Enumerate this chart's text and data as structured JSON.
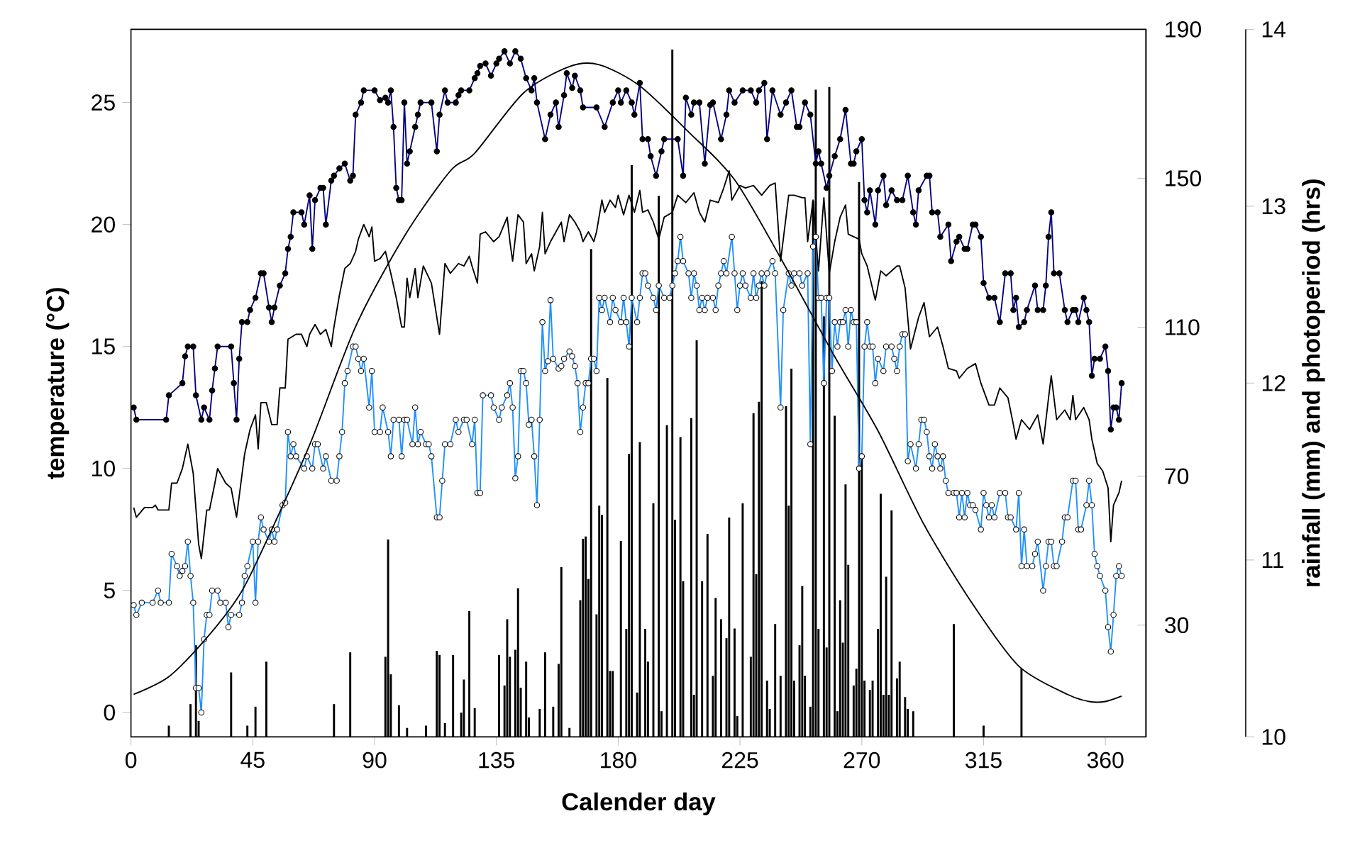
{
  "chart_data": {
    "type": "line",
    "xlabel": "Calender day",
    "ylabel": "temperature (°C)",
    "y2label": "rainfall (mm) and photoperiod (hrs)",
    "xlim": [
      0,
      375
    ],
    "xticks": [
      0,
      45,
      90,
      135,
      180,
      225,
      270,
      315,
      360
    ],
    "ylim": [
      -1,
      28
    ],
    "yticks": [
      0,
      5,
      10,
      15,
      20,
      25
    ],
    "y2lim": [
      0,
      190
    ],
    "y2ticks": [
      30,
      70,
      110,
      150,
      190
    ],
    "y3lim": [
      10,
      14
    ],
    "y3ticks": [
      10,
      11,
      12,
      13,
      14
    ],
    "series": [
      {
        "color": "#000080",
        "marker": "circle",
        "x": [
          1,
          2,
          13,
          14,
          19,
          20,
          21,
          23,
          24,
          26,
          27,
          29,
          30,
          31,
          32,
          37,
          38,
          39,
          40,
          41,
          43,
          44,
          46,
          48,
          49,
          51,
          52,
          53,
          55,
          57,
          58,
          59,
          60,
          63,
          64,
          66,
          67,
          68,
          70,
          71,
          72,
          74,
          75,
          77,
          79,
          81,
          82,
          83,
          85,
          86,
          90,
          92,
          94,
          95,
          96,
          97,
          98,
          99,
          100,
          101,
          102,
          103,
          105,
          106,
          107,
          111,
          113,
          114,
          116,
          117,
          120,
          121,
          122,
          125,
          127,
          128,
          129,
          131,
          133,
          135,
          136,
          138,
          140,
          142,
          144,
          146,
          148,
          149,
          150,
          153,
          155,
          157,
          158,
          160,
          161,
          163,
          164,
          166,
          167,
          172,
          175,
          178,
          180,
          181,
          183,
          185,
          186,
          188,
          189,
          191,
          192,
          194,
          196,
          197,
          202,
          204,
          205,
          207,
          208,
          210,
          212,
          214,
          215,
          218,
          220,
          221,
          223,
          226,
          229,
          231,
          232,
          234,
          235,
          237,
          240,
          242,
          244,
          246,
          247,
          249,
          251,
          253,
          254,
          255,
          257,
          258,
          260,
          262,
          264,
          266,
          267,
          268,
          270,
          271,
          272,
          273,
          275,
          276,
          278,
          279,
          281,
          283,
          285,
          287,
          289,
          290,
          291,
          294,
          295,
          296,
          298,
          299,
          302,
          303,
          305,
          306,
          308,
          309,
          311,
          312,
          314,
          315,
          317,
          319,
          321,
          323,
          325,
          326,
          327,
          328,
          330,
          331,
          334,
          335,
          337,
          338,
          339,
          340,
          341,
          343,
          345,
          346,
          348,
          349,
          350,
          352,
          353,
          354,
          355,
          356,
          358,
          360,
          361,
          362,
          363,
          364,
          365,
          366
        ],
        "values": [
          12.5,
          12,
          12,
          13,
          13.5,
          14.6,
          15,
          15,
          13,
          12,
          12.5,
          12,
          13.2,
          14.1,
          15,
          15,
          13.5,
          12,
          14.5,
          16,
          16,
          16.5,
          17,
          18,
          18,
          16.6,
          16,
          16.6,
          17.5,
          18,
          19,
          19.5,
          20.5,
          20.5,
          20,
          21.2,
          19,
          21,
          21.5,
          21.5,
          20,
          21.8,
          22,
          22.3,
          22.5,
          21.8,
          22,
          24.5,
          25,
          25.5,
          25.5,
          25.1,
          25.2,
          25,
          25.5,
          24,
          21.5,
          21,
          21,
          25,
          22.5,
          23,
          24,
          24.5,
          25,
          25,
          23,
          24.5,
          25.5,
          25,
          25,
          25.3,
          25.5,
          25.5,
          26,
          26.2,
          26.5,
          26.6,
          26.1,
          26.6,
          26.8,
          27.1,
          26.6,
          27.1,
          26.8,
          26,
          25.5,
          26,
          25,
          23.5,
          24.5,
          25,
          24,
          25.3,
          26.2,
          25.6,
          26.1,
          25.5,
          24.8,
          24.8,
          24,
          25,
          25.5,
          25,
          25.5,
          25,
          24.5,
          25.8,
          23.5,
          23.5,
          22.8,
          22,
          23,
          23.5,
          23.5,
          22,
          25.2,
          24.5,
          25,
          25,
          22.5,
          24.9,
          25,
          23.5,
          24.5,
          25.5,
          25,
          25.5,
          25.5,
          25,
          25.5,
          25.8,
          23.5,
          25.5,
          24.5,
          25,
          25.5,
          24,
          24,
          25,
          24.5,
          22.5,
          23,
          22.5,
          21.5,
          22,
          22.8,
          23.5,
          24.7,
          22.5,
          22.5,
          23,
          23.5,
          21,
          20.5,
          21.4,
          20,
          21.4,
          22,
          20.8,
          21.4,
          21,
          21,
          22,
          20.5,
          20,
          21.4,
          22,
          22,
          20.5,
          20.5,
          19.5,
          20,
          18.5,
          19.3,
          19.5,
          19,
          19,
          20,
          20,
          19.5,
          17.6,
          17,
          17,
          16,
          18,
          18,
          16.5,
          17,
          15.8,
          16,
          16.5,
          17.5,
          16.5,
          16.5,
          17.5,
          19.5,
          20.5,
          18,
          18,
          16.5,
          16,
          16.5,
          16.5,
          16,
          17,
          16.5,
          16,
          13.8,
          14.5,
          14.5,
          15,
          14,
          11.6,
          12.5,
          12.5,
          12,
          13.5
        ]
      },
      {
        "color": "#1e90ff",
        "marker": "circle",
        "x": [
          1,
          2,
          4,
          8,
          10,
          11,
          14,
          15,
          17,
          18,
          19,
          20,
          21,
          22,
          23,
          24,
          25,
          26,
          27,
          28,
          29,
          30,
          32,
          33,
          35,
          36,
          37,
          40,
          41,
          42,
          43,
          45,
          46,
          47,
          48,
          49,
          51,
          52,
          53,
          54,
          56,
          57,
          58,
          59,
          60,
          61,
          64,
          65,
          67,
          68,
          69,
          71,
          72,
          74,
          76,
          77,
          78,
          79,
          80,
          82,
          83,
          84,
          85,
          86,
          88,
          89,
          90,
          92,
          93,
          95,
          96,
          97,
          99,
          100,
          101,
          102,
          104,
          105,
          106,
          107,
          109,
          110,
          111,
          113,
          114,
          115,
          116,
          118,
          120,
          121,
          123,
          124,
          126,
          127,
          128,
          129,
          130,
          133,
          134,
          136,
          137,
          139,
          140,
          141,
          142,
          143,
          144,
          145,
          146,
          147,
          148,
          149,
          150,
          151,
          152,
          153,
          154,
          155,
          156,
          158,
          159,
          160,
          162,
          163,
          164,
          165,
          166,
          167,
          168,
          169,
          170,
          171,
          172,
          173,
          174,
          175,
          177,
          178,
          179,
          181,
          182,
          183,
          184,
          185,
          187,
          188,
          189,
          190,
          191,
          193,
          194,
          195,
          197,
          199,
          200,
          201,
          202,
          203,
          204,
          206,
          207,
          208,
          209,
          210,
          211,
          212,
          213,
          215,
          216,
          217,
          218,
          219,
          220,
          222,
          223,
          224,
          225,
          226,
          227,
          229,
          230,
          231,
          232,
          233,
          234,
          235,
          237,
          238,
          240,
          241,
          243,
          244,
          245,
          247,
          248,
          250,
          251,
          252,
          253,
          254,
          255,
          256,
          257,
          258,
          259,
          260,
          261,
          262,
          263,
          264,
          265,
          266,
          267,
          268,
          269,
          270,
          271,
          272,
          273,
          274,
          275,
          276,
          278,
          279,
          281,
          282,
          283,
          284,
          285,
          286,
          287,
          288,
          290,
          291,
          292,
          293,
          294,
          295,
          296,
          297,
          298,
          299,
          300,
          301,
          302,
          304,
          305,
          306,
          307,
          308,
          309,
          310,
          311,
          312,
          314,
          315,
          316,
          317,
          318,
          319,
          321,
          323,
          324,
          325,
          327,
          328,
          329,
          330,
          331,
          333,
          334,
          335,
          337,
          338,
          339,
          340,
          341,
          342,
          344,
          345,
          346,
          348,
          349,
          350,
          351,
          353,
          354,
          355,
          356,
          357,
          358,
          360,
          361,
          362,
          363,
          364,
          365,
          366
        ],
        "values": [
          4.4,
          4,
          4.5,
          4.5,
          5,
          4.5,
          4.5,
          6.5,
          6,
          5.6,
          5.8,
          6,
          7,
          5.6,
          4.5,
          1,
          1,
          0,
          3,
          4,
          4,
          5,
          5,
          4.5,
          4.5,
          3.5,
          4,
          4,
          4.5,
          5.6,
          6,
          7,
          4.5,
          7,
          8,
          7.5,
          7,
          7.5,
          7,
          7.5,
          8.5,
          8.6,
          11.5,
          10.5,
          11,
          10.5,
          10,
          10.5,
          10,
          11,
          11,
          10,
          10.5,
          9.5,
          9.5,
          10.5,
          11.5,
          13.5,
          14,
          15,
          15,
          14.5,
          14,
          14.5,
          12.5,
          14,
          11.5,
          11.5,
          12.5,
          11.5,
          10.5,
          12,
          12,
          10.5,
          12,
          12,
          11,
          12.5,
          11,
          11.5,
          11,
          11,
          10.5,
          8,
          8,
          9.5,
          11,
          11,
          12,
          11.5,
          12,
          12,
          11,
          12,
          9,
          9,
          13,
          13,
          12.5,
          12,
          12.5,
          13,
          13.5,
          12.5,
          9.6,
          10.5,
          14,
          14,
          13.5,
          11.8,
          12,
          10.5,
          8.5,
          12,
          16,
          14,
          14.4,
          16.9,
          14.5,
          14.1,
          14.2,
          14.5,
          14.8,
          14.6,
          14.2,
          13.5,
          11.5,
          12.5,
          13.5,
          13.5,
          14.5,
          14.5,
          14,
          17,
          16.5,
          17,
          16,
          17,
          16.5,
          16,
          17,
          16,
          15,
          17,
          16,
          17,
          18,
          18,
          17.5,
          17,
          16.5,
          17.5,
          17,
          17,
          17.5,
          18,
          18.5,
          19.5,
          18.5,
          18,
          17,
          18,
          17.5,
          16.5,
          17,
          16.5,
          17,
          17,
          16.5,
          17.5,
          18,
          18.5,
          18,
          19.5,
          18,
          16.5,
          17.5,
          18,
          17.5,
          17,
          18,
          17,
          17.5,
          18,
          17.5,
          18,
          18.5,
          18,
          12.5,
          16.5,
          18,
          17.5,
          18,
          18,
          17.5,
          18,
          11,
          19.1,
          19.5,
          17,
          17,
          13.5,
          17,
          17,
          14,
          16,
          15,
          16,
          16,
          16.5,
          15,
          16.5,
          16,
          16,
          10,
          10.5,
          15,
          16,
          15,
          15,
          13.5,
          14.5,
          14,
          15,
          15,
          14.5,
          14,
          15,
          15.5,
          15.5,
          10.3,
          11,
          10,
          11,
          12,
          12,
          11.5,
          10.5,
          10,
          11,
          10.5,
          10,
          10.5,
          9.5,
          9,
          9,
          9,
          8,
          9,
          8,
          9,
          8.5,
          8.5,
          8.3,
          7.5,
          9,
          8.5,
          8,
          8.5,
          8,
          9,
          9,
          8,
          8,
          7.5,
          9,
          6,
          7.5,
          6,
          6,
          6.5,
          7,
          5,
          6,
          7,
          7,
          6,
          6,
          7,
          8,
          8,
          9.5,
          9.5,
          7.5,
          7.5,
          8.5,
          9.5,
          8.5,
          6.5,
          6,
          5.6,
          5,
          3.5,
          2.5,
          4,
          5.6,
          6,
          5.6
        ]
      },
      {
        "color": "#000000",
        "marker": "none",
        "x": [
          1,
          2,
          5,
          8,
          9,
          10,
          14,
          15,
          17,
          19,
          21,
          23,
          25,
          26,
          28,
          29,
          31,
          32,
          35,
          37,
          39,
          42,
          44,
          46,
          47,
          48,
          50,
          52,
          54,
          55,
          57,
          58,
          61,
          63,
          65,
          66,
          68,
          70,
          72,
          74,
          75,
          77,
          79,
          81,
          83,
          84,
          86,
          88,
          89,
          90,
          92,
          94,
          96,
          98,
          100,
          101,
          102,
          103,
          105,
          106,
          108,
          111,
          113,
          114,
          116,
          118,
          121,
          123,
          125,
          126,
          128,
          129,
          131,
          134,
          136,
          139,
          140,
          141,
          143,
          145,
          146,
          148,
          149,
          151,
          152,
          153,
          155,
          157,
          159,
          160,
          162,
          164,
          166,
          167,
          169,
          171,
          172,
          174,
          175,
          177,
          179,
          180,
          182,
          184,
          186,
          188,
          189,
          191,
          193,
          195,
          197,
          200,
          202,
          205,
          208,
          210,
          212,
          214,
          217,
          219,
          221,
          222,
          225,
          227,
          230,
          233,
          236,
          238,
          240,
          243,
          245,
          248,
          249,
          250,
          252,
          254,
          256,
          258,
          260,
          262,
          264,
          265,
          267,
          269,
          270,
          272,
          275,
          277,
          279,
          283,
          284,
          286,
          288,
          291,
          293,
          295,
          298,
          300,
          302,
          305,
          306,
          309,
          312,
          314,
          317,
          319,
          321,
          324,
          326,
          327,
          329,
          332,
          335,
          337,
          339,
          340,
          342,
          345,
          347,
          348,
          349,
          352,
          354,
          355,
          357,
          359,
          361,
          362,
          363,
          365,
          366
        ],
        "values": [
          8.4,
          8,
          8.4,
          8.4,
          8.5,
          8.3,
          8.3,
          9.4,
          9.4,
          10,
          11,
          9.8,
          6.9,
          6.3,
          8.3,
          8.3,
          9.4,
          10,
          9.4,
          9.2,
          8,
          10.6,
          11.6,
          12.2,
          10.8,
          12.7,
          12.7,
          11.8,
          11.8,
          13.3,
          13.3,
          15.3,
          15.5,
          15.5,
          15,
          15.5,
          15.9,
          15.5,
          15.7,
          15,
          15.8,
          17.1,
          18.2,
          18.4,
          18.9,
          19.4,
          20,
          19.5,
          19.9,
          18.5,
          18.6,
          18.9,
          18,
          17,
          15.8,
          15.8,
          17.8,
          17,
          18.2,
          17,
          18.3,
          17.6,
          16.2,
          15.5,
          18.4,
          18,
          18.4,
          18.3,
          18.7,
          18.3,
          17.6,
          19.6,
          19.7,
          19.3,
          19.5,
          20.3,
          19.3,
          18.5,
          20.4,
          20.1,
          18.4,
          18.8,
          18.1,
          19.1,
          20.5,
          18.8,
          19.3,
          19.7,
          20.1,
          19.3,
          20.4,
          20.1,
          19.7,
          19.3,
          19.7,
          19.3,
          19.7,
          21,
          20.5,
          21,
          20.7,
          21.2,
          20.4,
          21.2,
          20.5,
          21.4,
          20.5,
          20.6,
          20.1,
          19.4,
          20.3,
          20.5,
          21.2,
          20.9,
          21.3,
          20.5,
          20.1,
          21,
          20.9,
          21.5,
          22.2,
          21,
          21.6,
          21.5,
          21.6,
          21.2,
          21.6,
          21.7,
          18.5,
          21.2,
          21.2,
          21.1,
          21.1,
          19.3,
          21,
          18.1,
          21.1,
          18,
          19.3,
          20.3,
          20.8,
          19.6,
          19.5,
          19.4,
          18.8,
          18.3,
          16.9,
          18.1,
          17.9,
          18.3,
          18.3,
          17.4,
          14.9,
          16.2,
          16.8,
          15.4,
          15.8,
          15,
          14.1,
          14,
          13.7,
          14.1,
          14.3,
          13.5,
          12.6,
          12.6,
          13.3,
          12.9,
          11.8,
          11.2,
          12,
          11.6,
          12.2,
          11,
          12.9,
          13.8,
          12,
          12.4,
          12,
          13,
          12,
          12.5,
          12,
          11.2,
          10.2,
          9.9,
          9.2,
          7,
          8.5,
          9,
          9.5
        ]
      },
      {
        "color": "#000000",
        "marker": "none",
        "axis": "y3",
        "x": [
          1,
          14,
          28,
          40,
          48,
          66,
          83,
          101,
          118,
          127,
          145,
          162,
          173,
          188,
          206,
          223,
          241,
          260,
          276,
          293,
          311,
          328,
          346,
          354,
          360,
          366
        ],
        "values": [
          10.24,
          10.34,
          10.56,
          10.8,
          11.04,
          11.65,
          12.32,
          12.83,
          13.2,
          13.3,
          13.64,
          13.79,
          13.8,
          13.68,
          13.42,
          13.15,
          12.68,
          12.15,
          11.73,
          11.2,
          10.75,
          10.4,
          10.24,
          10.2,
          10.2,
          10.23
        ]
      },
      {
        "type": "bar",
        "color": "#000000",
        "axis": "y2",
        "x": [
          14,
          22,
          24,
          25,
          37,
          43,
          46,
          50,
          75,
          81,
          94,
          95,
          96,
          99,
          102,
          109,
          113,
          114,
          116,
          119,
          122,
          123,
          125,
          127,
          136,
          138,
          139,
          140,
          142,
          143,
          144,
          146,
          147,
          151,
          153,
          156,
          158,
          159,
          162,
          166,
          167,
          168,
          169,
          170,
          172,
          173,
          174,
          176,
          177,
          178,
          181,
          183,
          184,
          185,
          187,
          188,
          190,
          191,
          193,
          195,
          196,
          198,
          200,
          201,
          203,
          204,
          207,
          208,
          209,
          211,
          213,
          215,
          216,
          218,
          220,
          221,
          223,
          224,
          226,
          229,
          230,
          231,
          232,
          233,
          235,
          236,
          238,
          240,
          242,
          243,
          244,
          245,
          247,
          248,
          249,
          251,
          252,
          253,
          254,
          256,
          257,
          258,
          260,
          261,
          262,
          263,
          264,
          265,
          267,
          268,
          269,
          270,
          271,
          273,
          274,
          276,
          277,
          278,
          279,
          280,
          281,
          283,
          284,
          286,
          287,
          289,
          304,
          315,
          329
        ],
        "values": [
          3,
          8.8,
          24.6,
          4.3,
          17.3,
          3,
          8.1,
          20.2,
          8.8,
          22.7,
          21.5,
          53,
          16.8,
          8.5,
          2.4,
          3,
          23.1,
          22,
          3.7,
          22,
          6.5,
          15.4,
          33.8,
          7.7,
          22,
          13.8,
          31.6,
          21.5,
          23.4,
          39.9,
          13.2,
          20.2,
          5.2,
          7.5,
          22.7,
          8.1,
          19.6,
          45.6,
          2.4,
          36.7,
          53.2,
          53.8,
          42.4,
          131,
          32.9,
          62.1,
          59.6,
          96.4,
          17.7,
          17.7,
          52.6,
          29,
          76,
          153.5,
          11.9,
          79.2,
          29,
          20.2,
          62.7,
          145.3,
          6.9,
          83.7,
          184.6,
          58.3,
          80.5,
          41.8,
          85.6,
          11.3,
          106.5,
          41.8,
          54.5,
          16.4,
          37.3,
          31.6,
          26.5,
          58.9,
          29.1,
          5.6,
          62.7,
          21.5,
          86.9,
          43.7,
          90,
          122.4,
          15.1,
          7.5,
          30.3,
          16.4,
          88.8,
          62.1,
          98.9,
          15.1,
          24.6,
          40.5,
          16.4,
          8.1,
          144,
          173.8,
          29,
          112.9,
          24,
          174.5,
          86.2,
          6.9,
          36.7,
          25.3,
          67.8,
          46.2,
          13.8,
          18.3,
          149,
          75.4,
          15.1,
          12.6,
          15.1,
          29,
          65.3,
          11.3,
          43,
          11.3,
          60.8,
          15.7,
          20.2,
          10.7,
          7.5,
          6.9,
          30.3,
          3,
          18.3
        ]
      }
    ]
  }
}
